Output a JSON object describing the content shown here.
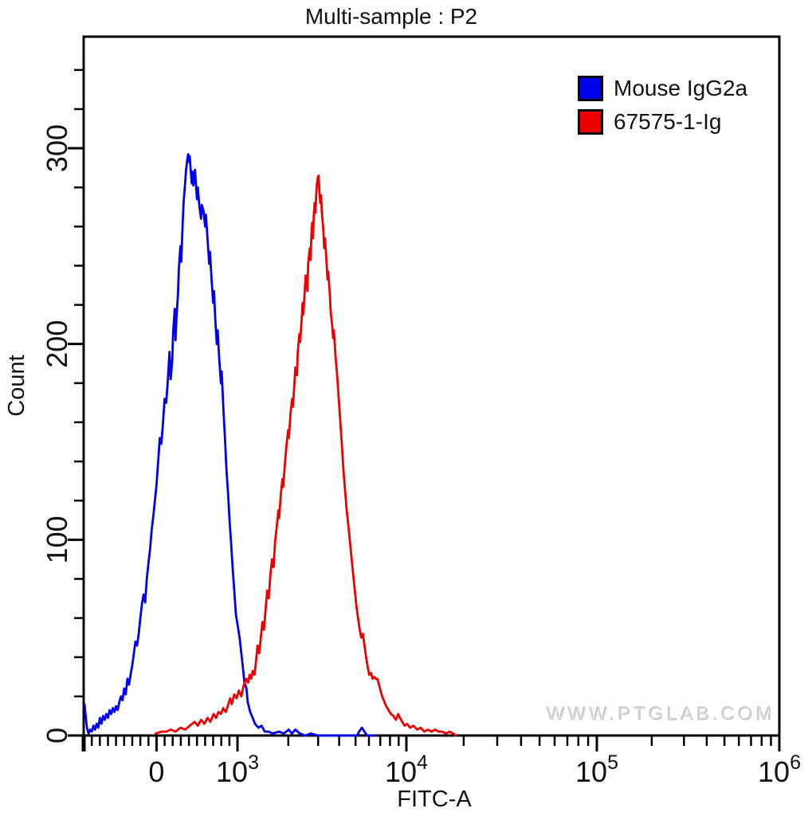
{
  "title": "Multi-sample : P2",
  "watermark": "WWW.PTGLAB.COM",
  "legend": {
    "items": [
      {
        "label": "Mouse IgG2a",
        "color": "#0000ee",
        "border": "#000000"
      },
      {
        "label": "67575-1-Ig",
        "color": "#ee0000",
        "border": "#000000"
      }
    ]
  },
  "chart_data": {
    "type": "line",
    "subtype": "flow-cytometry-histogram-overlay",
    "title": "Multi-sample : P2",
    "xlabel": "FITC-A",
    "ylabel": "Count",
    "legend_position": "top-right",
    "grid": false,
    "x_axis": {
      "scale": "biexponential",
      "linear_zone": {
        "min": -900,
        "max": 1000
      },
      "anchors": [
        [
          -900,
          0.0
        ],
        [
          0,
          0.1042
        ],
        [
          1000,
          0.2211
        ],
        [
          10000,
          0.4639
        ],
        [
          100000,
          0.7377
        ],
        [
          1000000,
          1.0
        ]
      ],
      "major_ticks": [
        {
          "value": -900,
          "label": ""
        },
        {
          "value": 0,
          "label": "0"
        },
        {
          "value": 1000,
          "label": "10",
          "exponent": "3"
        },
        {
          "value": 10000,
          "label": "10",
          "exponent": "4"
        },
        {
          "value": 100000,
          "label": "10",
          "exponent": "5"
        },
        {
          "value": 1000000,
          "label": "10",
          "exponent": "6"
        }
      ],
      "minor_ticks": [
        -800,
        -700,
        -600,
        -500,
        -400,
        -300,
        -200,
        -100,
        100,
        200,
        300,
        400,
        500,
        600,
        700,
        800,
        900,
        2000,
        3000,
        4000,
        5000,
        6000,
        7000,
        8000,
        9000,
        20000,
        30000,
        40000,
        50000,
        60000,
        70000,
        80000,
        90000,
        200000,
        300000,
        400000,
        500000,
        600000,
        700000,
        800000,
        900000
      ]
    },
    "y_axis": {
      "min": 0,
      "max": 357,
      "major_ticks": [
        {
          "value": 0,
          "label": "0"
        },
        {
          "value": 100,
          "label": "100"
        },
        {
          "value": 200,
          "label": "200"
        },
        {
          "value": 300,
          "label": "300"
        }
      ],
      "minor_step": 20,
      "minor_max": 340
    },
    "series": [
      {
        "name": "Mouse IgG2a",
        "color": "#0000ee",
        "peak": {
          "x": 400,
          "count": 296
        },
        "points": [
          [
            -890,
            16
          ],
          [
            -875,
            10
          ],
          [
            -860,
            4
          ],
          [
            -840,
            1
          ],
          [
            -820,
            3
          ],
          [
            -800,
            2
          ],
          [
            -780,
            5
          ],
          [
            -760,
            3
          ],
          [
            -740,
            6
          ],
          [
            -720,
            4
          ],
          [
            -700,
            9
          ],
          [
            -680,
            6
          ],
          [
            -660,
            10
          ],
          [
            -640,
            8
          ],
          [
            -620,
            11
          ],
          [
            -600,
            9
          ],
          [
            -580,
            13
          ],
          [
            -560,
            11
          ],
          [
            -540,
            14
          ],
          [
            -520,
            12
          ],
          [
            -500,
            15
          ],
          [
            -480,
            13
          ],
          [
            -460,
            17
          ],
          [
            -440,
            20
          ],
          [
            -420,
            18
          ],
          [
            -400,
            24
          ],
          [
            -380,
            21
          ],
          [
            -360,
            29
          ],
          [
            -340,
            26
          ],
          [
            -320,
            31
          ],
          [
            -300,
            36
          ],
          [
            -280,
            42
          ],
          [
            -260,
            48
          ],
          [
            -240,
            46
          ],
          [
            -220,
            52
          ],
          [
            -200,
            60
          ],
          [
            -180,
            67
          ],
          [
            -160,
            72
          ],
          [
            -140,
            68
          ],
          [
            -120,
            80
          ],
          [
            -100,
            88
          ],
          [
            -80,
            95
          ],
          [
            -60,
            105
          ],
          [
            -40,
            112
          ],
          [
            -20,
            120
          ],
          [
            0,
            128
          ],
          [
            20,
            140
          ],
          [
            40,
            152
          ],
          [
            60,
            149
          ],
          [
            80,
            160
          ],
          [
            100,
            172
          ],
          [
            120,
            170
          ],
          [
            140,
            182
          ],
          [
            160,
            196
          ],
          [
            175,
            182
          ],
          [
            195,
            192
          ],
          [
            205,
            206
          ],
          [
            225,
            218
          ],
          [
            235,
            202
          ],
          [
            245,
            212
          ],
          [
            265,
            226
          ],
          [
            275,
            238
          ],
          [
            295,
            250
          ],
          [
            305,
            242
          ],
          [
            325,
            263
          ],
          [
            335,
            273
          ],
          [
            355,
            283
          ],
          [
            365,
            289
          ],
          [
            380,
            294
          ],
          [
            390,
            297
          ],
          [
            400,
            293
          ],
          [
            410,
            296
          ],
          [
            420,
            290
          ],
          [
            435,
            282
          ],
          [
            445,
            288
          ],
          [
            455,
            281
          ],
          [
            465,
            285
          ],
          [
            475,
            289
          ],
          [
            485,
            283
          ],
          [
            500,
            274
          ],
          [
            510,
            280
          ],
          [
            530,
            270
          ],
          [
            550,
            264
          ],
          [
            560,
            271
          ],
          [
            580,
            268
          ],
          [
            600,
            260
          ],
          [
            610,
            266
          ],
          [
            630,
            254
          ],
          [
            650,
            241
          ],
          [
            660,
            247
          ],
          [
            680,
            233
          ],
          [
            700,
            221
          ],
          [
            710,
            227
          ],
          [
            725,
            213
          ],
          [
            745,
            200
          ],
          [
            755,
            207
          ],
          [
            775,
            192
          ],
          [
            795,
            180
          ],
          [
            805,
            186
          ],
          [
            825,
            168
          ],
          [
            845,
            152
          ],
          [
            865,
            135
          ],
          [
            885,
            123
          ],
          [
            900,
            111
          ],
          [
            920,
            99
          ],
          [
            940,
            86
          ],
          [
            960,
            74
          ],
          [
            980,
            62
          ],
          [
            1030,
            50
          ],
          [
            1070,
            37
          ],
          [
            1100,
            27
          ],
          [
            1130,
            24
          ],
          [
            1150,
            17
          ],
          [
            1190,
            12
          ],
          [
            1230,
            9
          ],
          [
            1270,
            6
          ],
          [
            1330,
            4
          ],
          [
            1390,
            5
          ],
          [
            1450,
            2
          ],
          [
            1530,
            2
          ],
          [
            1610,
            1
          ],
          [
            1760,
            2
          ],
          [
            1880,
            1
          ],
          [
            2010,
            3
          ],
          [
            2100,
            1
          ],
          [
            2200,
            3
          ],
          [
            2340,
            1
          ],
          [
            2520,
            0
          ],
          [
            2710,
            1
          ],
          [
            3000,
            0
          ],
          [
            5100,
            0
          ],
          [
            5250,
            2
          ],
          [
            5450,
            4
          ],
          [
            5650,
            2
          ],
          [
            5840,
            0
          ],
          [
            6450,
            0
          ]
        ]
      },
      {
        "name": "67575-1-Ig",
        "color": "#ee0000",
        "peak": {
          "x": 3000,
          "count": 286
        },
        "points": [
          [
            -10,
            1
          ],
          [
            60,
            2
          ],
          [
            120,
            2
          ],
          [
            175,
            3
          ],
          [
            235,
            2
          ],
          [
            295,
            4
          ],
          [
            355,
            3
          ],
          [
            410,
            5
          ],
          [
            470,
            7
          ],
          [
            510,
            5
          ],
          [
            550,
            8
          ],
          [
            590,
            6
          ],
          [
            630,
            9
          ],
          [
            665,
            7
          ],
          [
            705,
            11
          ],
          [
            735,
            9
          ],
          [
            765,
            12
          ],
          [
            795,
            11
          ],
          [
            825,
            14
          ],
          [
            855,
            12
          ],
          [
            880,
            15
          ],
          [
            910,
            19
          ],
          [
            930,
            16
          ],
          [
            960,
            21
          ],
          [
            990,
            19
          ],
          [
            1020,
            23
          ],
          [
            1055,
            20
          ],
          [
            1090,
            26
          ],
          [
            1130,
            29
          ],
          [
            1155,
            27
          ],
          [
            1180,
            31
          ],
          [
            1205,
            29
          ],
          [
            1230,
            33
          ],
          [
            1260,
            31
          ],
          [
            1285,
            37
          ],
          [
            1315,
            46
          ],
          [
            1345,
            42
          ],
          [
            1375,
            50
          ],
          [
            1405,
            58
          ],
          [
            1435,
            54
          ],
          [
            1465,
            64
          ],
          [
            1500,
            74
          ],
          [
            1530,
            70
          ],
          [
            1565,
            82
          ],
          [
            1600,
            90
          ],
          [
            1635,
            86
          ],
          [
            1670,
            99
          ],
          [
            1710,
            107
          ],
          [
            1745,
            115
          ],
          [
            1765,
            111
          ],
          [
            1805,
            123
          ],
          [
            1845,
            131
          ],
          [
            1865,
            127
          ],
          [
            1910,
            139
          ],
          [
            1950,
            148
          ],
          [
            1995,
            156
          ],
          [
            2015,
            152
          ],
          [
            2060,
            164
          ],
          [
            2105,
            172
          ],
          [
            2130,
            168
          ],
          [
            2175,
            180
          ],
          [
            2200,
            188
          ],
          [
            2250,
            184
          ],
          [
            2275,
            196
          ],
          [
            2325,
            205
          ],
          [
            2350,
            201
          ],
          [
            2400,
            213
          ],
          [
            2430,
            221
          ],
          [
            2455,
            215
          ],
          [
            2510,
            229
          ],
          [
            2535,
            235
          ],
          [
            2595,
            227
          ],
          [
            2620,
            241
          ],
          [
            2680,
            249
          ],
          [
            2710,
            243
          ],
          [
            2740,
            256
          ],
          [
            2770,
            262
          ],
          [
            2800,
            254
          ],
          [
            2830,
            266
          ],
          [
            2860,
            272
          ],
          [
            2895,
            267
          ],
          [
            2925,
            276
          ],
          [
            2955,
            282
          ],
          [
            2990,
            285
          ],
          [
            3020,
            286
          ],
          [
            3055,
            278
          ],
          [
            3090,
            272
          ],
          [
            3125,
            276
          ],
          [
            3155,
            268
          ],
          [
            3225,
            258
          ],
          [
            3260,
            249
          ],
          [
            3300,
            254
          ],
          [
            3370,
            241
          ],
          [
            3410,
            233
          ],
          [
            3445,
            237
          ],
          [
            3525,
            225
          ],
          [
            3560,
            217
          ],
          [
            3640,
            209
          ],
          [
            3680,
            203
          ],
          [
            3720,
            207
          ],
          [
            3805,
            194
          ],
          [
            3890,
            184
          ],
          [
            3975,
            172
          ],
          [
            4065,
            160
          ],
          [
            4155,
            148
          ],
          [
            4245,
            135
          ],
          [
            4340,
            125
          ],
          [
            4435,
            115
          ],
          [
            4535,
            107
          ],
          [
            4635,
            99
          ],
          [
            4740,
            90
          ],
          [
            4845,
            82
          ],
          [
            4950,
            74
          ],
          [
            5060,
            66
          ],
          [
            5175,
            60
          ],
          [
            5290,
            54
          ],
          [
            5405,
            50
          ],
          [
            5525,
            52
          ],
          [
            5650,
            46
          ],
          [
            5775,
            40
          ],
          [
            5900,
            35
          ],
          [
            6030,
            31
          ],
          [
            6165,
            32
          ],
          [
            6300,
            29
          ],
          [
            6440,
            30
          ],
          [
            6585,
            29
          ],
          [
            6730,
            29
          ],
          [
            6880,
            26
          ],
          [
            7030,
            23
          ],
          [
            7190,
            20
          ],
          [
            7345,
            18
          ],
          [
            7590,
            15
          ],
          [
            7845,
            13
          ],
          [
            8105,
            11
          ],
          [
            8380,
            10
          ],
          [
            8660,
            8
          ],
          [
            8945,
            11
          ],
          [
            9145,
            9
          ],
          [
            9450,
            7
          ],
          [
            9765,
            5
          ],
          [
            10090,
            6
          ],
          [
            10430,
            4
          ],
          [
            10890,
            5
          ],
          [
            11380,
            3
          ],
          [
            11885,
            4
          ],
          [
            12415,
            2
          ],
          [
            12970,
            3
          ],
          [
            13545,
            2
          ],
          [
            14150,
            3
          ],
          [
            14780,
            2
          ],
          [
            15440,
            2
          ],
          [
            16125,
            1
          ],
          [
            16845,
            2
          ],
          [
            17595,
            1
          ],
          [
            18175,
            0
          ]
        ]
      }
    ]
  }
}
